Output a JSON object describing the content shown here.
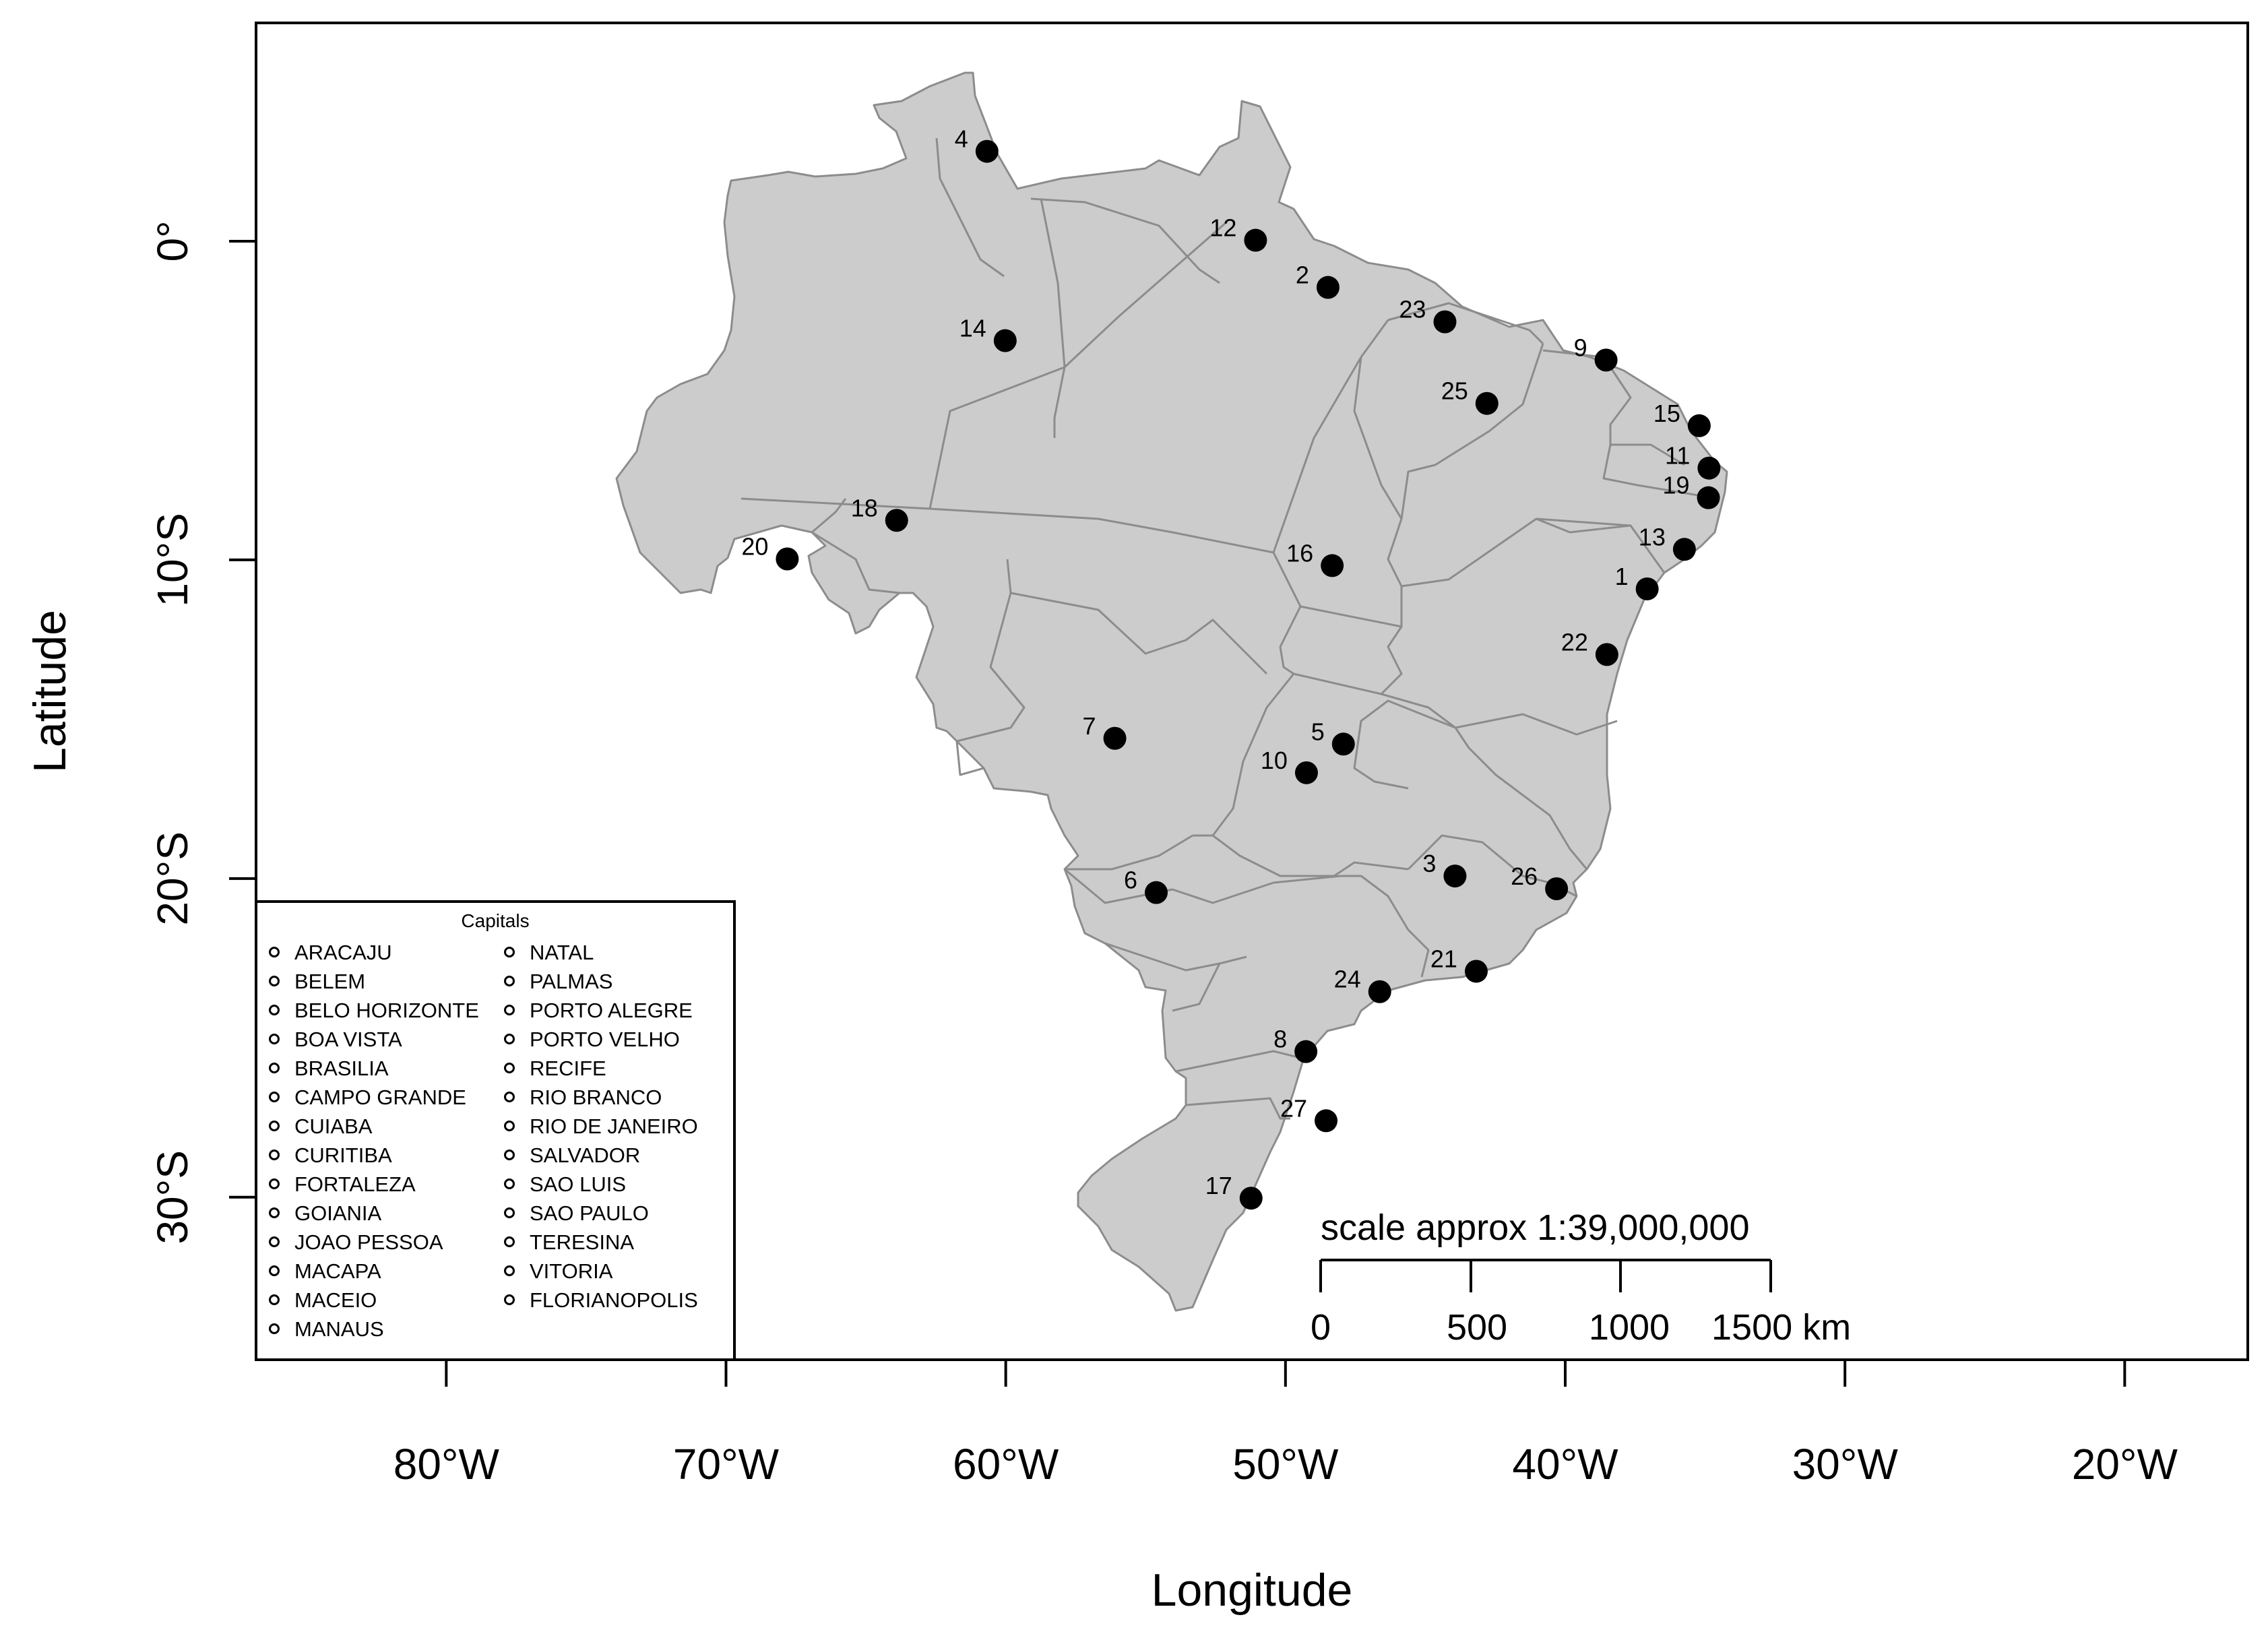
{
  "map": {
    "xlabel": "Longitude",
    "ylabel": "Latitude",
    "lon_range": [
      -86.8,
      -15.6
    ],
    "lat_range": [
      -35.1,
      6.85
    ],
    "x_ticks": [
      {
        "lon": -80,
        "label": "80°W"
      },
      {
        "lon": -70,
        "label": "70°W"
      },
      {
        "lon": -60,
        "label": "60°W"
      },
      {
        "lon": -50,
        "label": "50°W"
      },
      {
        "lon": -40,
        "label": "40°W"
      },
      {
        "lon": -30,
        "label": "30°W"
      },
      {
        "lon": -20,
        "label": "20°W"
      }
    ],
    "y_ticks": [
      {
        "lat": 0,
        "label": "0°"
      },
      {
        "lat": -10,
        "label": "10°S"
      },
      {
        "lat": -20,
        "label": "20°S"
      },
      {
        "lat": -30,
        "label": "30°S"
      }
    ],
    "colors": {
      "land": "#cccccc",
      "border": "#8c8c8c",
      "point": "#000000"
    }
  },
  "cities": [
    {
      "n": "1",
      "lon": -37.07,
      "lat": -10.91
    },
    {
      "n": "2",
      "lon": -48.48,
      "lat": -1.45
    },
    {
      "n": "3",
      "lon": -43.94,
      "lat": -19.92
    },
    {
      "n": "4",
      "lon": -60.67,
      "lat": 2.82
    },
    {
      "n": "5",
      "lon": -47.93,
      "lat": -15.78
    },
    {
      "n": "6",
      "lon": -54.62,
      "lat": -20.44
    },
    {
      "n": "7",
      "lon": -56.1,
      "lat": -15.6
    },
    {
      "n": "8",
      "lon": -49.27,
      "lat": -25.43
    },
    {
      "n": "9",
      "lon": -38.54,
      "lat": -3.73
    },
    {
      "n": "10",
      "lon": -49.25,
      "lat": -16.68
    },
    {
      "n": "11",
      "lon": -34.86,
      "lat": -7.12
    },
    {
      "n": "12",
      "lon": -51.07,
      "lat": 0.03
    },
    {
      "n": "13",
      "lon": -35.74,
      "lat": -9.67
    },
    {
      "n": "14",
      "lon": -60.02,
      "lat": -3.12
    },
    {
      "n": "15",
      "lon": -35.21,
      "lat": -5.79
    },
    {
      "n": "16",
      "lon": -48.33,
      "lat": -10.18
    },
    {
      "n": "17",
      "lon": -51.23,
      "lat": -30.03
    },
    {
      "n": "18",
      "lon": -63.9,
      "lat": -8.76
    },
    {
      "n": "19",
      "lon": -34.88,
      "lat": -8.05
    },
    {
      "n": "20",
      "lon": -67.81,
      "lat": -9.97
    },
    {
      "n": "21",
      "lon": -43.18,
      "lat": -22.91
    },
    {
      "n": "22",
      "lon": -38.51,
      "lat": -12.97
    },
    {
      "n": "23",
      "lon": -44.3,
      "lat": -2.53
    },
    {
      "n": "24",
      "lon": -46.63,
      "lat": -23.55
    },
    {
      "n": "25",
      "lon": -42.8,
      "lat": -5.09
    },
    {
      "n": "26",
      "lon": -40.31,
      "lat": -20.32
    },
    {
      "n": "27",
      "lon": -48.55,
      "lat": -27.6
    }
  ],
  "legend": {
    "title": "Capitals",
    "column1": [
      "ARACAJU",
      "BELEM",
      "BELO HORIZONTE",
      "BOA VISTA",
      "BRASILIA",
      "CAMPO GRANDE",
      "CUIABA",
      "CURITIBA",
      "FORTALEZA",
      "GOIANIA",
      "JOAO PESSOA",
      "MACAPA",
      "MACEIO",
      "MANAUS"
    ],
    "column2": [
      "NATAL",
      "PALMAS",
      "PORTO ALEGRE",
      "PORTO VELHO",
      "RECIFE",
      "RIO BRANCO",
      "RIO DE JANEIRO",
      "SALVADOR",
      "SAO LUIS",
      "SAO PAULO",
      "TERESINA",
      "VITORIA",
      "FLORIANOPOLIS"
    ]
  },
  "scale_bar": {
    "title": "scale approx 1:39,000,000",
    "ticks": [
      "0",
      "500",
      "1000",
      "1500 km"
    ]
  }
}
